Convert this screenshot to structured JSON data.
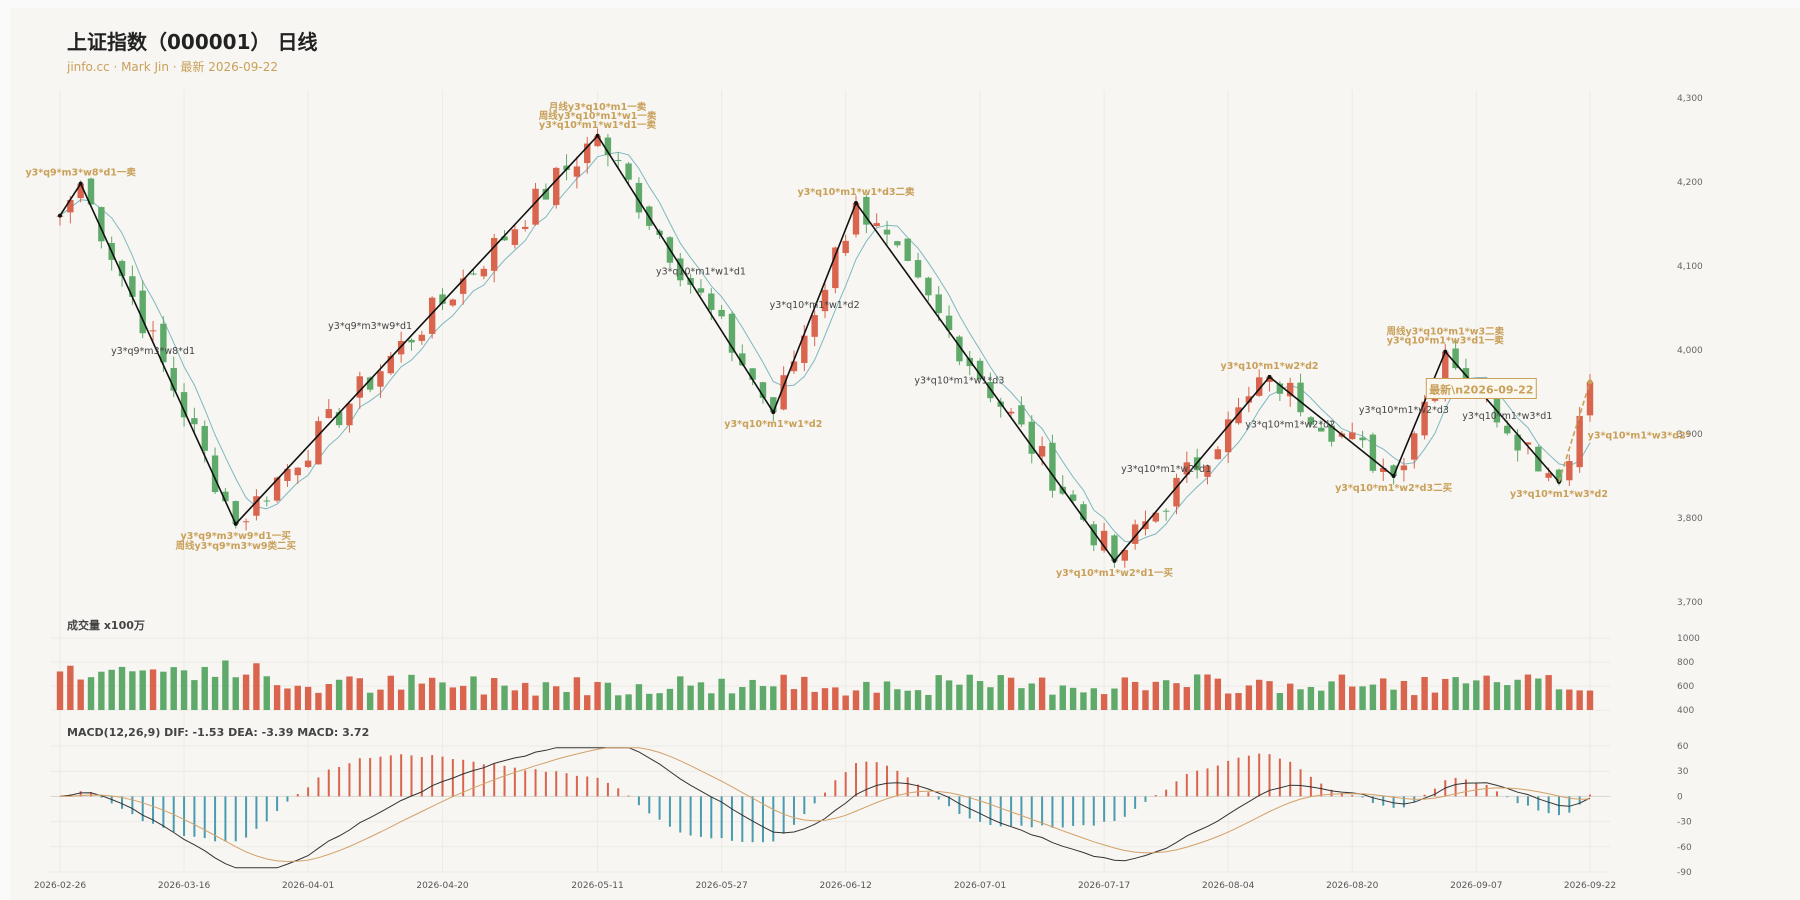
{
  "title": "上证指数（000001） 日线",
  "subtitle": "jinfo.cc · Mark Jin · 最新 2026-09-22",
  "colors": {
    "up": "#d9654f",
    "down": "#5faa6a",
    "ma": "#7fb8c0",
    "zigzag": "#111111",
    "gold": "#c9a05a",
    "dif": "#333333",
    "dea": "#d4a06a",
    "macd_neg": "#4a9bb0"
  },
  "chart_data": [
    {
      "type": "candlestick",
      "name": "price",
      "ylim": [
        3700,
        4300
      ],
      "y_ticks": [
        "3,700",
        "3,800",
        "3,900",
        "4,000",
        "4,100",
        "4,200",
        "4,300"
      ],
      "x_tick_labels": [
        "2026-02-26",
        "2026-03-16",
        "2026-04-01",
        "2026-04-20",
        "2026-05-11",
        "2026-05-27",
        "2026-06-12",
        "2026-07-01",
        "2026-07-17",
        "2026-08-04",
        "2026-08-20",
        "2026-09-07",
        "2026-09-22"
      ],
      "zigzag": [
        {
          "d": "2026-02-26",
          "v": 4160
        },
        {
          "d": "2026-02-28",
          "v": 4198
        },
        {
          "d": "2026-03-23",
          "v": 3793
        },
        {
          "d": "2026-05-11",
          "v": 4255
        },
        {
          "d": "2026-06-03",
          "v": 3926
        },
        {
          "d": "2026-06-14",
          "v": 4175
        },
        {
          "d": "2026-07-18",
          "v": 3749
        },
        {
          "d": "2026-08-08",
          "v": 3968
        },
        {
          "d": "2026-08-26",
          "v": 3850
        },
        {
          "d": "2026-09-02",
          "v": 3998
        },
        {
          "d": "2026-09-17",
          "v": 3843
        }
      ],
      "projection": [
        {
          "d": "2026-09-17",
          "v": 3843
        },
        {
          "d": "2026-09-22",
          "v": 3962
        }
      ],
      "annotations_gold": [
        {
          "d": "2026-02-28",
          "v": 4198,
          "pos": "above",
          "lines": [
            "y3*q9*m3*w8*d1一卖"
          ]
        },
        {
          "d": "2026-03-23",
          "v": 3793,
          "pos": "below",
          "lines": [
            "y3*q9*m3*w9*d1一买",
            "周线y3*q9*m3*w9类二买"
          ]
        },
        {
          "d": "2026-05-11",
          "v": 4255,
          "pos": "above",
          "lines": [
            "月线y3*q10*m1一卖",
            "周线y3*q10*m1*w1一卖",
            "y3*q10*m1*w1*d1一卖"
          ]
        },
        {
          "d": "2026-06-03",
          "v": 3926,
          "pos": "below",
          "lines": [
            "y3*q10*m1*w1*d2"
          ]
        },
        {
          "d": "2026-06-14",
          "v": 4175,
          "pos": "above",
          "lines": [
            "y3*q10*m1*w1*d3二卖"
          ]
        },
        {
          "d": "2026-07-18",
          "v": 3749,
          "pos": "below",
          "lines": [
            "y3*q10*m1*w2*d1一买"
          ]
        },
        {
          "d": "2026-08-08",
          "v": 3968,
          "pos": "above",
          "lines": [
            "y3*q10*m1*w2*d2"
          ]
        },
        {
          "d": "2026-08-26",
          "v": 3850,
          "pos": "below",
          "lines": [
            "y3*q10*m1*w2*d3二买"
          ]
        },
        {
          "d": "2026-09-02",
          "v": 3998,
          "pos": "above",
          "lines": [
            "周线y3*q10*m1*w3二卖",
            "y3*q10*m1*w3*d1一卖"
          ]
        },
        {
          "d": "2026-09-17",
          "v": 3843,
          "pos": "below",
          "lines": [
            "y3*q10*m1*w3*d2"
          ]
        },
        {
          "d": "2026-09-19",
          "v": 3898,
          "pos": "right",
          "lines": [
            "y3*q10*m1*w3*d2*"
          ]
        }
      ],
      "annotations_dark": [
        {
          "d": "2026-03-11",
          "v": 3995,
          "text": "y3*q9*m3*w8*d1"
        },
        {
          "d": "2026-04-09",
          "v": 4025,
          "text": "y3*q9*m3*w9*d1"
        },
        {
          "d": "2026-05-25",
          "v": 4090,
          "text": "y3*q10*m1*w1*d1"
        },
        {
          "d": "2026-06-09",
          "v": 4050,
          "text": "y3*q10*m1*w1*d2"
        },
        {
          "d": "2026-06-28",
          "v": 3960,
          "text": "y3*q10*m1*w1*d3"
        },
        {
          "d": "2026-07-27",
          "v": 3855,
          "text": "y3*q10*m1*w2*d1"
        },
        {
          "d": "2026-08-12",
          "v": 3908,
          "text": "y3*q10*m1*w2*d2"
        },
        {
          "d": "2026-08-27",
          "v": 3925,
          "text": "y3*q10*m1*w2*d3"
        },
        {
          "d": "2026-09-10",
          "v": 3918,
          "text": "y3*q10*m1*w3*d1"
        }
      ],
      "latest_label": "最新\\n2026-09-22"
    },
    {
      "type": "bar",
      "name": "volume",
      "title": "成交量 x100万",
      "ylim": [
        400,
        1000
      ],
      "y_ticks": [
        "400",
        "600",
        "800",
        "1000"
      ]
    },
    {
      "type": "line+bar",
      "name": "macd",
      "title": "MACD(12,26,9) DIF: -1.53 DEA: -3.39 MACD: 3.72",
      "ylim": [
        -90,
        60
      ],
      "y_ticks": [
        "60",
        "30",
        "0",
        "-30",
        "-60",
        "-90"
      ]
    }
  ]
}
